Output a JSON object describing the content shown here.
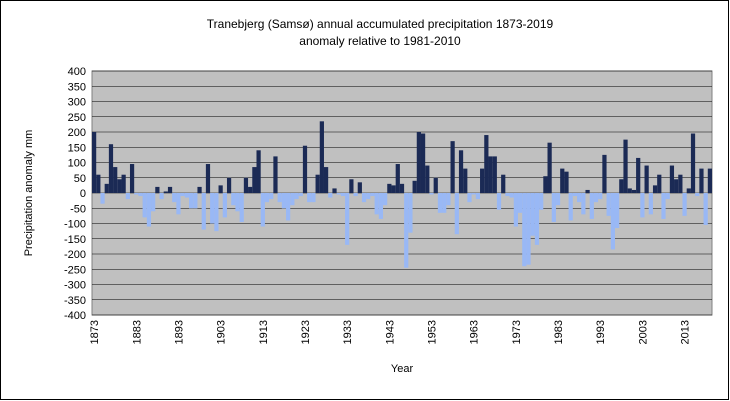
{
  "chart_data": {
    "type": "bar",
    "title": "Tranebjerg (Samsø) annual  accumulated precipitation 1873-2019",
    "subtitle": "anomaly relative to 1981-2010",
    "y_label": "Precipitation anomaly mm",
    "x_label": "Year",
    "categories": [
      "1873",
      null,
      null,
      null,
      null,
      null,
      null,
      null,
      null,
      null,
      "1883",
      null,
      null,
      null,
      null,
      null,
      null,
      null,
      null,
      null,
      "1893",
      null,
      null,
      null,
      null,
      null,
      null,
      null,
      null,
      null,
      "1903",
      null,
      null,
      null,
      null,
      null,
      null,
      null,
      null,
      null,
      "1913",
      null,
      null,
      null,
      null,
      null,
      null,
      null,
      null,
      null,
      "1923",
      null,
      null,
      null,
      null,
      null,
      null,
      null,
      null,
      null,
      "1933",
      null,
      null,
      null,
      null,
      null,
      null,
      null,
      null,
      null,
      "1943",
      null,
      null,
      null,
      null,
      null,
      null,
      null,
      null,
      null,
      "1953",
      null,
      null,
      null,
      null,
      null,
      null,
      null,
      null,
      null,
      "1963",
      null,
      null,
      null,
      null,
      null,
      null,
      null,
      null,
      null,
      "1973",
      null,
      null,
      null,
      null,
      null,
      null,
      null,
      null,
      null,
      "1983",
      null,
      null,
      null,
      null,
      null,
      null,
      null,
      null,
      null,
      "1993",
      null,
      null,
      null,
      null,
      null,
      null,
      null,
      null,
      null,
      "2003",
      null,
      null,
      null,
      null,
      null,
      null,
      null,
      null,
      null,
      "2013",
      null,
      null,
      null,
      null,
      null,
      null
    ],
    "values": [
      200,
      60,
      -35,
      30,
      160,
      85,
      45,
      60,
      -20,
      95,
      -5,
      -10,
      -80,
      -110,
      -60,
      20,
      -20,
      5,
      20,
      -30,
      -70,
      -10,
      -15,
      -50,
      -50,
      20,
      -120,
      95,
      -100,
      -125,
      25,
      -80,
      50,
      -40,
      -60,
      -95,
      50,
      20,
      85,
      140,
      -110,
      -30,
      -20,
      120,
      -30,
      -50,
      -90,
      -40,
      -20,
      -10,
      155,
      -30,
      -30,
      60,
      235,
      85,
      -15,
      15,
      -5,
      -10,
      -170,
      45,
      -10,
      35,
      -30,
      -20,
      -10,
      -70,
      -85,
      -40,
      30,
      25,
      95,
      30,
      -245,
      -130,
      40,
      200,
      195,
      90,
      -5,
      50,
      -65,
      -65,
      -40,
      170,
      -135,
      140,
      80,
      -30,
      -5,
      -20,
      80,
      190,
      120,
      120,
      -55,
      60,
      -10,
      -15,
      -110,
      -65,
      -240,
      -235,
      -140,
      -170,
      -55,
      55,
      165,
      -95,
      -40,
      80,
      70,
      -90,
      -10,
      -30,
      -70,
      10,
      -85,
      -30,
      -20,
      125,
      -75,
      -185,
      -115,
      45,
      175,
      15,
      10,
      115,
      -80,
      90,
      -70,
      25,
      60,
      -85,
      -20,
      90,
      45,
      60,
      -75,
      15,
      195,
      -10,
      80,
      -105,
      80
    ],
    "color": "#1b2a55",
    "negative_color": "#99b8f5",
    "ylim": [
      -400,
      400
    ],
    "yticks": [
      -400,
      -350,
      -300,
      -250,
      -200,
      -150,
      -100,
      -50,
      0,
      50,
      100,
      150,
      200,
      250,
      300,
      350,
      400
    ],
    "grid": true
  }
}
